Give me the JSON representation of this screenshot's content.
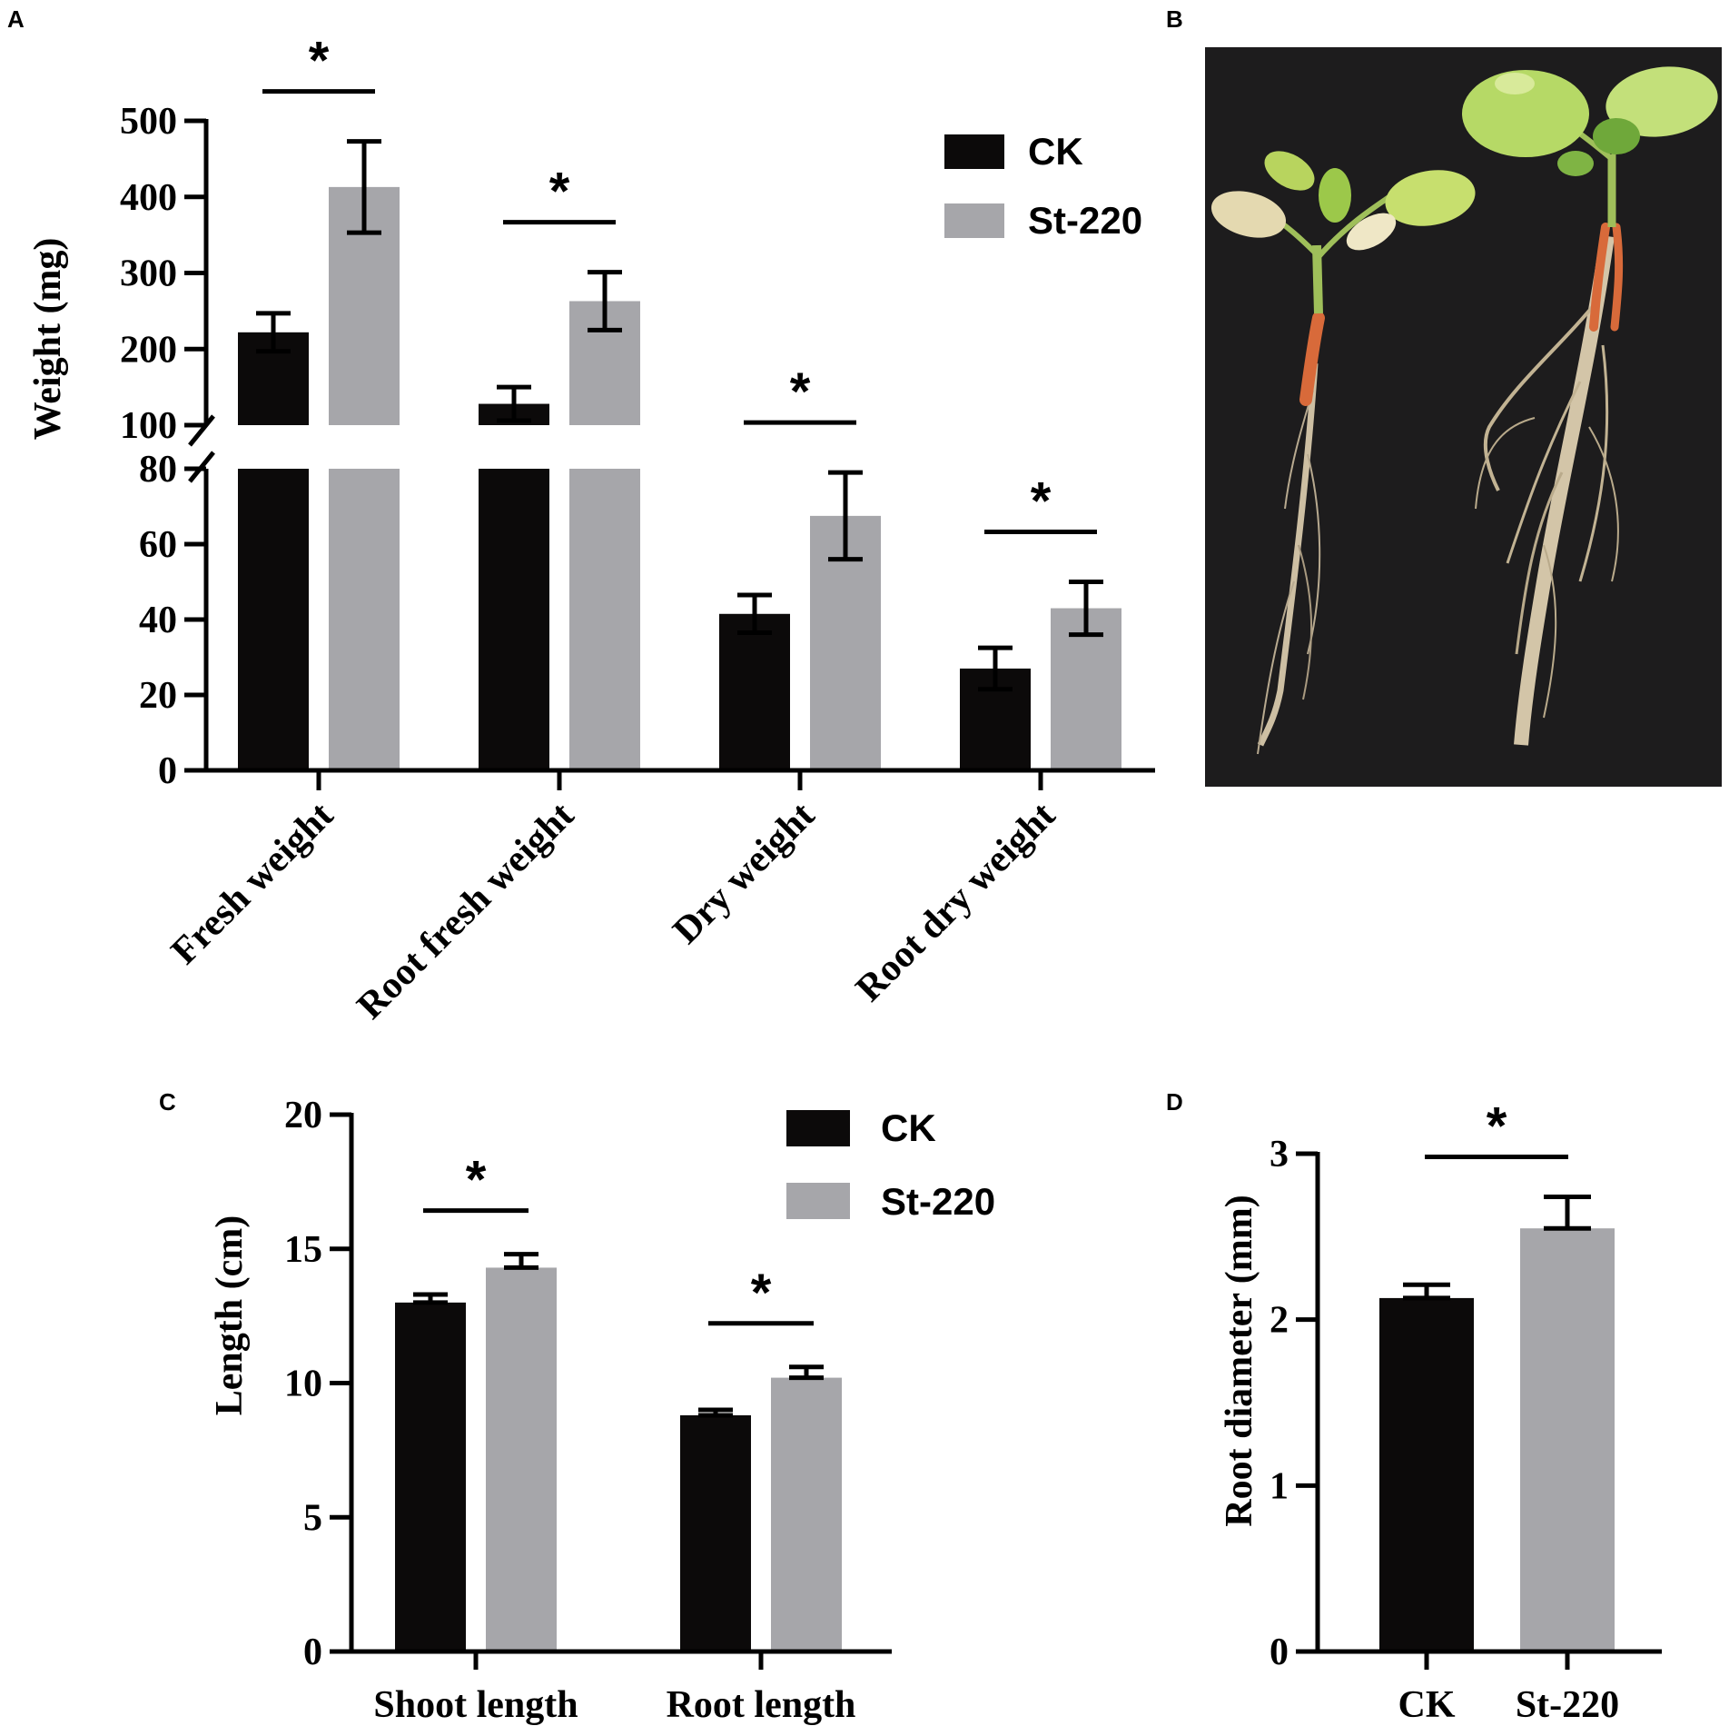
{
  "panels": {
    "A": "A",
    "B": "B",
    "C": "C",
    "D": "D"
  },
  "colors": {
    "ck": "#0c0a0a",
    "st": "#a6a6aa",
    "axis": "#000000",
    "photo_bg": "#1d1c1d"
  },
  "legend": {
    "ck": "CK",
    "st": "St-220"
  },
  "chart_data": [
    {
      "panel": "A",
      "type": "bar",
      "ylabel": "Weight (mg)",
      "ylim": [
        0,
        500
      ],
      "broken_axis": {
        "lower": [
          0,
          80
        ],
        "upper": [
          100,
          500
        ]
      },
      "categories": [
        "Fresh weight",
        "Root fresh weight",
        "Dry weight",
        "Root dry weight"
      ],
      "series": [
        {
          "name": "CK",
          "values": [
            222,
            128,
            41.5,
            27
          ],
          "errors": [
            25,
            22,
            5,
            5.5
          ]
        },
        {
          "name": "St-220",
          "values": [
            413,
            263,
            67.5,
            43
          ],
          "errors": [
            60,
            38,
            11.5,
            7
          ]
        }
      ],
      "significance": [
        "*",
        "*",
        "*",
        "*"
      ],
      "yticks_lower": [
        "0",
        "20",
        "40",
        "60",
        "80"
      ],
      "yticks_upper": [
        "100",
        "200",
        "300",
        "400",
        "500"
      ]
    },
    {
      "panel": "C",
      "type": "bar",
      "ylabel": "Length (cm)",
      "ylim": [
        0,
        20
      ],
      "categories": [
        "Shoot length",
        "Root length"
      ],
      "series": [
        {
          "name": "CK",
          "values": [
            13.0,
            8.8
          ],
          "errors": [
            0.3,
            0.2
          ]
        },
        {
          "name": "St-220",
          "values": [
            14.3,
            10.2
          ],
          "errors": [
            0.5,
            0.4
          ]
        }
      ],
      "significance": [
        "*",
        "*"
      ],
      "yticks": [
        "0",
        "5",
        "10",
        "15",
        "20"
      ]
    },
    {
      "panel": "D",
      "type": "bar",
      "ylabel": "Root diameter (mm)",
      "ylim": [
        0,
        3
      ],
      "categories": [
        "CK",
        "St-220"
      ],
      "values": [
        2.13,
        2.55
      ],
      "errors": [
        0.08,
        0.19
      ],
      "significance": [
        "*"
      ],
      "yticks": [
        "0",
        "1",
        "2",
        "3"
      ]
    }
  ]
}
